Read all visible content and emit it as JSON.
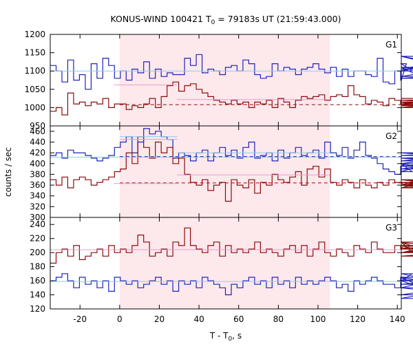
{
  "chart_data": {
    "type": "line",
    "title_main": "KONUS-WIND 100421 T",
    "title_sub": "0",
    "title_rest": " = 79183s UT (21:59:43.000)",
    "xlabel_main": "T - T",
    "xlabel_sub": "0",
    "xlabel_rest": ", s",
    "ylabel": "counts / sec",
    "xlim": [
      -35,
      142
    ],
    "xticks": [
      -20,
      0,
      20,
      40,
      60,
      80,
      100,
      120,
      140
    ],
    "highlight": {
      "from": 0,
      "to": 106,
      "color": "#fde8ec"
    },
    "bin_width": 2.944,
    "x_start": -35,
    "colors": {
      "blue": "#1f22b8",
      "red": "#8b0a0a",
      "light_blue": "#87ceeb",
      "pink": "#ee99cc"
    },
    "panels": [
      {
        "name": "G1",
        "ylim": [
          950,
          1200
        ],
        "yticks": [
          950,
          1000,
          1050,
          1100,
          1150,
          1200
        ],
        "series": [
          {
            "color": "blue",
            "values": [
              1115,
              1100,
              1070,
              1130,
              1075,
              1090,
              1050,
              1120,
              1080,
              1135,
              1115,
              1080,
              1100,
              1075,
              1105,
              1095,
              1125,
              1080,
              1105,
              1085,
              1095,
              1090,
              1090,
              1135,
              1115,
              1145,
              1095,
              1105,
              1100,
              1090,
              1110,
              1115,
              1100,
              1130,
              1120,
              1090,
              1080,
              1085,
              1120,
              1100,
              1110,
              1105,
              1090,
              1105,
              1110,
              1120,
              1105,
              1095,
              1110,
              1085,
              1105,
              1085,
              1100,
              1100,
              1090,
              1085,
              1135,
              1070,
              1065,
              1100,
              1075,
              1120,
              1100,
              1110,
              1080,
              1085,
              1100,
              1140,
              1110,
              1100,
              1100,
              1140,
              1105,
              1110
            ]
          },
          {
            "color": "red",
            "values": [
              990,
              1000,
              980,
              1040,
              1010,
              1015,
              1005,
              1015,
              1010,
              1025,
              1000,
              1010,
              1010,
              995,
              1005,
              1000,
              1010,
              1025,
              1000,
              1030,
              1060,
              1070,
              1045,
              1060,
              1065,
              1050,
              1040,
              1030,
              1020,
              1015,
              1010,
              1020,
              1010,
              1015,
              1000,
              1015,
              1010,
              1020,
              1000,
              1025,
              1015,
              1000,
              1020,
              1030,
              1025,
              1030,
              1035,
              1020,
              1030,
              1035,
              1030,
              1060,
              1035,
              1030,
              1010,
              1020,
              1015,
              1005,
              1025,
              1020,
              1010,
              1005,
              1015,
              1005,
              1015,
              1000,
              1010,
              1020,
              1015,
              1010,
              1005,
              1015,
              1020,
              1025
            ]
          }
        ],
        "levels": [
          {
            "color": "light_blue",
            "value": 1100,
            "from": -35,
            "to": 142,
            "style": "solid"
          },
          {
            "color": "red",
            "value": 1008,
            "from": 0,
            "to": 142,
            "style": "dashed"
          },
          {
            "color": "pink",
            "value": 1062,
            "from": -3,
            "to": 29,
            "style": "solid"
          },
          {
            "color": "pink",
            "value": 1022,
            "from": 29,
            "to": 107,
            "style": "solid"
          }
        ]
      },
      {
        "name": "G2",
        "ylim": [
          300,
          470
        ],
        "yticks": [
          300,
          320,
          340,
          360,
          380,
          400,
          420,
          440,
          460
        ],
        "series": [
          {
            "color": "blue",
            "values": [
              415,
              420,
              410,
              425,
              420,
              420,
              415,
              410,
              405,
              410,
              415,
              430,
              440,
              450,
              420,
              440,
              465,
              455,
              460,
              450,
              445,
              410,
              420,
              415,
              405,
              420,
              425,
              405,
              420,
              430,
              415,
              425,
              410,
              430,
              440,
              410,
              415,
              420,
              405,
              425,
              410,
              420,
              430,
              415,
              420,
              425,
              410,
              440,
              420,
              415,
              430,
              410,
              425,
              440,
              415,
              410,
              400,
              390,
              385,
              380,
              395,
              400,
              385,
              395,
              400,
              390,
              400,
              410,
              405,
              415,
              420,
              410,
              415,
              420
            ]
          },
          {
            "color": "red",
            "values": [
              370,
              360,
              375,
              355,
              370,
              375,
              370,
              360,
              365,
              370,
              375,
              385,
              390,
              420,
              400,
              450,
              430,
              410,
              440,
              420,
              430,
              400,
              410,
              380,
              365,
              360,
              370,
              350,
              360,
              365,
              330,
              370,
              360,
              355,
              370,
              345,
              365,
              360,
              380,
              370,
              365,
              375,
              385,
              360,
              390,
              395,
              375,
              390,
              365,
              360,
              370,
              365,
              355,
              370,
              360,
              355,
              365,
              360,
              370,
              365,
              365,
              355,
              360,
              370,
              365,
              360,
              355,
              360,
              370,
              365,
              365,
              360,
              360,
              365
            ]
          }
        ],
        "levels": [
          {
            "color": "light_blue",
            "value": 412,
            "from": -35,
            "to": 142,
            "style": "solid"
          },
          {
            "color": "blue",
            "value": 413,
            "from": 0,
            "to": 142,
            "style": "dashed"
          },
          {
            "color": "red",
            "value": 364,
            "from": 0,
            "to": 142,
            "style": "dashed"
          },
          {
            "color": "light_blue",
            "value": 450,
            "from": 0,
            "to": 29,
            "style": "solid"
          },
          {
            "color": "pink",
            "value": 445,
            "from": 0,
            "to": 29,
            "style": "solid"
          },
          {
            "color": "light_blue",
            "value": 420,
            "from": 29,
            "to": 106,
            "style": "solid"
          },
          {
            "color": "pink",
            "value": 363,
            "from": -3,
            "to": 29,
            "style": "solid"
          },
          {
            "color": "pink",
            "value": 379,
            "from": 29,
            "to": 106,
            "style": "solid"
          }
        ]
      },
      {
        "name": "G3",
        "ylim": [
          120,
          250
        ],
        "yticks": [
          120,
          140,
          160,
          180,
          200,
          220,
          240
        ],
        "series": [
          {
            "color": "blue",
            "values": [
              160,
              165,
              170,
              160,
              150,
              165,
              155,
              160,
              150,
              160,
              145,
              165,
              160,
              155,
              160,
              150,
              155,
              160,
              165,
              155,
              160,
              145,
              160,
              155,
              160,
              150,
              165,
              160,
              155,
              150,
              140,
              155,
              150,
              160,
              165,
              155,
              160,
              150,
              165,
              155,
              160,
              150,
              165,
              155,
              160,
              155,
              160,
              165,
              160,
              150,
              155,
              145,
              160,
              155,
              160,
              165,
              160,
              155,
              155,
              150,
              165,
              160,
              170,
              165,
              150,
              160,
              165,
              155,
              160,
              135,
              150,
              140,
              155,
              160
            ]
          },
          {
            "color": "red",
            "values": [
              185,
              200,
              205,
              195,
              210,
              190,
              195,
              200,
              205,
              195,
              210,
              200,
              205,
              200,
              210,
              225,
              215,
              195,
              200,
              205,
              195,
              215,
              210,
              235,
              210,
              205,
              200,
              210,
              215,
              195,
              210,
              200,
              205,
              200,
              205,
              215,
              200,
              205,
              200,
              195,
              205,
              210,
              200,
              210,
              195,
              205,
              215,
              200,
              195,
              205,
              200,
              195,
              210,
              205,
              200,
              215,
              205,
              200,
              200,
              210,
              205,
              215,
              200,
              205,
              215,
              200,
              210,
              195,
              200,
              210,
              205,
              215,
              200,
              205
            ]
          }
        ],
        "levels": [
          {
            "color": "pink",
            "value": 204,
            "from": -35,
            "to": 142,
            "style": "solid"
          },
          {
            "color": "light_blue",
            "value": 159,
            "from": -35,
            "to": 142,
            "style": "solid"
          }
        ]
      }
    ]
  }
}
